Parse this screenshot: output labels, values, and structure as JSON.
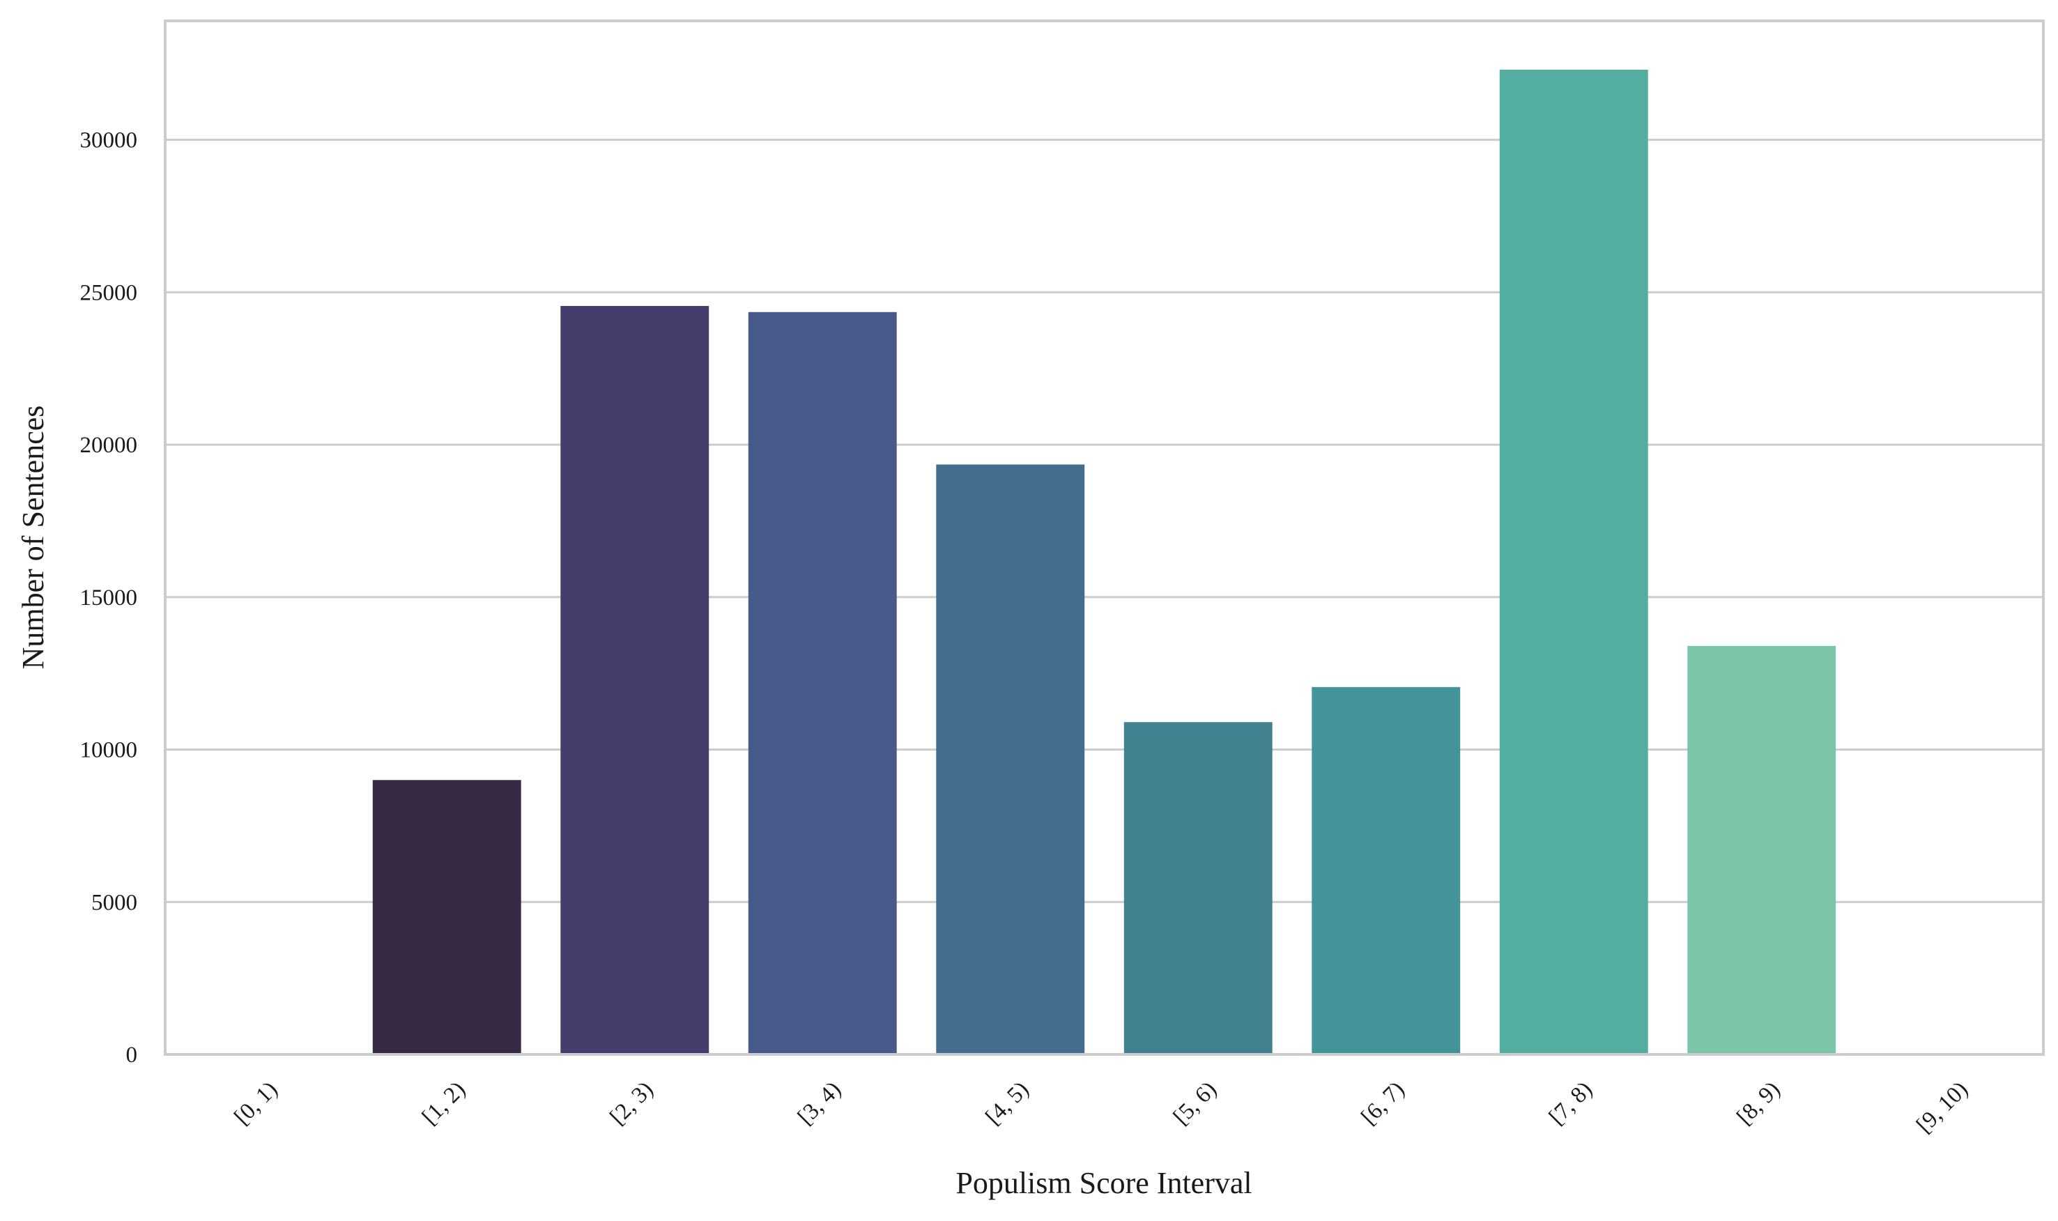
{
  "chart_data": {
    "type": "bar",
    "title": "",
    "xlabel": "Populism Score Interval",
    "ylabel": "Number of Sentences",
    "categories": [
      "[0, 1)",
      "[1, 2)",
      "[2, 3)",
      "[3, 4)",
      "[4, 5)",
      "[5, 6)",
      "[6, 7)",
      "[7, 8)",
      "[8, 9)",
      "[9, 10)"
    ],
    "values": [
      0,
      9000,
      24550,
      24350,
      19350,
      10900,
      12050,
      32300,
      13400,
      0
    ],
    "colors": [
      "#382f48",
      "#362a44",
      "#453d6b",
      "#475a8a",
      "#436d8f",
      "#42818f",
      "#439498",
      "#53ada1",
      "#7bc6a8",
      "#8fd3ae"
    ],
    "ylim": [
      0,
      33900
    ],
    "yticks": [
      0,
      5000,
      10000,
      15000,
      20000,
      25000,
      30000
    ],
    "grid": true,
    "legend": "none"
  }
}
